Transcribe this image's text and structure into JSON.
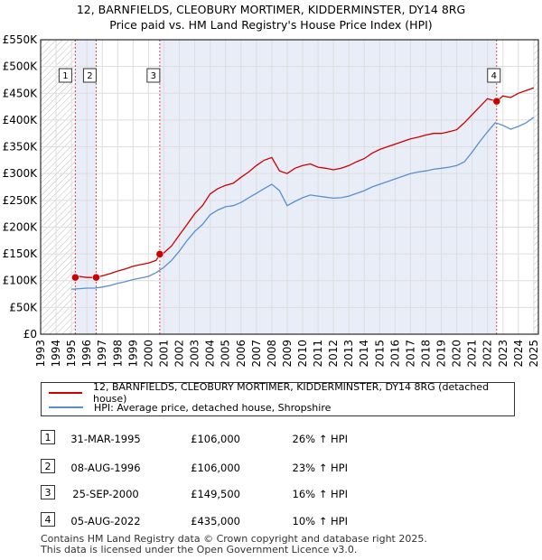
{
  "title_line1": "12, BARNFIELDS, CLEOBURY MORTIMER, KIDDERMINSTER, DY14 8RG",
  "title_line2": "Price paid vs. HM Land Registry's House Price Index (HPI)",
  "colors": {
    "property": "#cc0000",
    "hpi": "#5b8fcc",
    "shade": "#e8edf8",
    "grid": "#dddddd",
    "vline": "#dd4444"
  },
  "legend": {
    "property_label": "12, BARNFIELDS, CLEOBURY MORTIMER, KIDDERMINSTER, DY14 8RG (detached house)",
    "hpi_label": "HPI: Average price, detached house, Shropshire"
  },
  "transactions": [
    {
      "num": "1",
      "date": "31-MAR-1995",
      "price": "£106,000",
      "hpi": "26% ↑ HPI"
    },
    {
      "num": "2",
      "date": "08-AUG-1996",
      "price": "£106,000",
      "hpi": "23% ↑ HPI"
    },
    {
      "num": "3",
      "date": "25-SEP-2000",
      "price": "£149,500",
      "hpi": "16% ↑ HPI"
    },
    {
      "num": "4",
      "date": "05-AUG-2022",
      "price": "£435,000",
      "hpi": "10% ↑ HPI"
    }
  ],
  "footer_line1": "Contains HM Land Registry data © Crown copyright and database right 2025.",
  "footer_line2": "This data is licensed under the Open Government Licence v3.0.",
  "chart_data": {
    "type": "line",
    "title": "12, BARNFIELDS, CLEOBURY MORTIMER, KIDDERMINSTER, DY14 8RG — Price paid vs. HM Land Registry's House Price Index (HPI)",
    "xlabel": "",
    "ylabel": "",
    "xlim": [
      1993,
      2025
    ],
    "ylim": [
      0,
      550000
    ],
    "y_ticks": [
      0,
      50000,
      100000,
      150000,
      200000,
      250000,
      300000,
      350000,
      400000,
      450000,
      500000,
      550000
    ],
    "y_tick_labels": [
      "£0",
      "£50K",
      "£100K",
      "£150K",
      "£200K",
      "£250K",
      "£300K",
      "£350K",
      "£400K",
      "£450K",
      "£500K",
      "£550K"
    ],
    "x_ticks": [
      1993,
      1994,
      1995,
      1996,
      1997,
      1998,
      1999,
      2000,
      2001,
      2002,
      2003,
      2004,
      2005,
      2006,
      2007,
      2008,
      2009,
      2010,
      2011,
      2012,
      2013,
      2014,
      2015,
      2016,
      2017,
      2018,
      2019,
      2020,
      2021,
      2022,
      2023,
      2024,
      2025
    ],
    "grid": true,
    "hatched_ranges": [
      [
        1993,
        1995.25
      ],
      [
        2025,
        2025.5
      ]
    ],
    "shaded_ranges": [
      [
        1995.25,
        1996.6
      ],
      [
        2000.73,
        2022.59
      ]
    ],
    "sales": [
      {
        "label": "1",
        "x": 1995.25,
        "y": 106000
      },
      {
        "label": "2",
        "x": 1996.6,
        "y": 106000
      },
      {
        "label": "3",
        "x": 2000.73,
        "y": 149500
      },
      {
        "label": "4",
        "x": 2022.59,
        "y": 435000
      }
    ],
    "series": [
      {
        "name": "12, BARNFIELDS, CLEOBURY MORTIMER, KIDDERMINSTER, DY14 8RG (detached house)",
        "x": [
          1995.25,
          1995.5,
          1996.0,
          1996.6,
          1997.0,
          1997.5,
          1998.0,
          1998.5,
          1999.0,
          1999.5,
          2000.0,
          2000.5,
          2000.73,
          2001.0,
          2001.5,
          2002.0,
          2002.5,
          2003.0,
          2003.5,
          2004.0,
          2004.5,
          2005.0,
          2005.5,
          2006.0,
          2006.5,
          2007.0,
          2007.5,
          2008.0,
          2008.5,
          2009.0,
          2009.5,
          2010.0,
          2010.5,
          2011.0,
          2011.5,
          2012.0,
          2012.5,
          2013.0,
          2013.5,
          2014.0,
          2014.5,
          2015.0,
          2015.5,
          2016.0,
          2016.5,
          2017.0,
          2017.5,
          2018.0,
          2018.5,
          2019.0,
          2019.5,
          2020.0,
          2020.5,
          2021.0,
          2021.5,
          2022.0,
          2022.59,
          2023.0,
          2023.5,
          2024.0,
          2024.5,
          2025.0
        ],
        "y": [
          106000,
          108000,
          106000,
          106000,
          109000,
          113000,
          118000,
          122000,
          127000,
          130000,
          133000,
          138000,
          149500,
          152000,
          165000,
          185000,
          205000,
          225000,
          240000,
          262000,
          272000,
          278000,
          282000,
          293000,
          303000,
          315000,
          325000,
          330000,
          305000,
          300000,
          310000,
          315000,
          318000,
          312000,
          310000,
          307000,
          310000,
          315000,
          322000,
          328000,
          338000,
          345000,
          350000,
          355000,
          360000,
          365000,
          368000,
          372000,
          375000,
          375000,
          378000,
          382000,
          395000,
          410000,
          425000,
          440000,
          435000,
          445000,
          442000,
          450000,
          455000,
          460000
        ]
      },
      {
        "name": "HPI: Average price, detached house, Shropshire",
        "x": [
          1995.0,
          1995.5,
          1996.0,
          1996.5,
          1997.0,
          1997.5,
          1998.0,
          1998.5,
          1999.0,
          1999.5,
          2000.0,
          2000.5,
          2001.0,
          2001.5,
          2002.0,
          2002.5,
          2003.0,
          2003.5,
          2004.0,
          2004.5,
          2005.0,
          2005.5,
          2006.0,
          2006.5,
          2007.0,
          2007.5,
          2008.0,
          2008.5,
          2009.0,
          2009.5,
          2010.0,
          2010.5,
          2011.0,
          2011.5,
          2012.0,
          2012.5,
          2013.0,
          2013.5,
          2014.0,
          2014.5,
          2015.0,
          2015.5,
          2016.0,
          2016.5,
          2017.0,
          2017.5,
          2018.0,
          2018.5,
          2019.0,
          2019.5,
          2020.0,
          2020.5,
          2021.0,
          2021.5,
          2022.0,
          2022.5,
          2023.0,
          2023.5,
          2024.0,
          2024.5,
          2025.0
        ],
        "y": [
          84000,
          85000,
          86000,
          86000,
          88000,
          91000,
          95000,
          98000,
          102000,
          105000,
          108000,
          115000,
          125000,
          138000,
          155000,
          175000,
          192000,
          205000,
          223000,
          232000,
          238000,
          240000,
          246000,
          255000,
          263000,
          272000,
          280000,
          268000,
          240000,
          248000,
          255000,
          260000,
          258000,
          256000,
          254000,
          255000,
          258000,
          263000,
          268000,
          275000,
          280000,
          285000,
          290000,
          295000,
          300000,
          303000,
          305000,
          308000,
          310000,
          312000,
          315000,
          322000,
          340000,
          360000,
          378000,
          395000,
          390000,
          383000,
          388000,
          395000,
          405000
        ]
      }
    ]
  }
}
